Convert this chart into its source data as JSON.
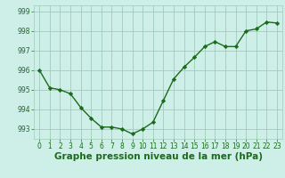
{
  "x": [
    0,
    1,
    2,
    3,
    4,
    5,
    6,
    7,
    8,
    9,
    10,
    11,
    12,
    13,
    14,
    15,
    16,
    17,
    18,
    19,
    20,
    21,
    22,
    23
  ],
  "y": [
    996.0,
    995.1,
    995.0,
    994.8,
    994.1,
    993.55,
    993.1,
    993.1,
    993.0,
    992.75,
    993.0,
    993.35,
    994.45,
    995.55,
    996.15,
    996.65,
    997.2,
    997.45,
    997.2,
    997.2,
    998.0,
    998.1,
    998.45,
    998.4
  ],
  "line_color": "#1a6b1a",
  "marker": "D",
  "marker_size": 2.2,
  "bg_color": "#ceeee8",
  "grid_color": "#a0ccbb",
  "xlabel": "Graphe pression niveau de la mer (hPa)",
  "ylim": [
    992.5,
    999.3
  ],
  "yticks": [
    993,
    994,
    995,
    996,
    997,
    998,
    999
  ],
  "xticks": [
    0,
    1,
    2,
    3,
    4,
    5,
    6,
    7,
    8,
    9,
    10,
    11,
    12,
    13,
    14,
    15,
    16,
    17,
    18,
    19,
    20,
    21,
    22,
    23
  ],
  "tick_fontsize": 5.5,
  "xlabel_fontsize": 7.5,
  "line_width": 1.0
}
